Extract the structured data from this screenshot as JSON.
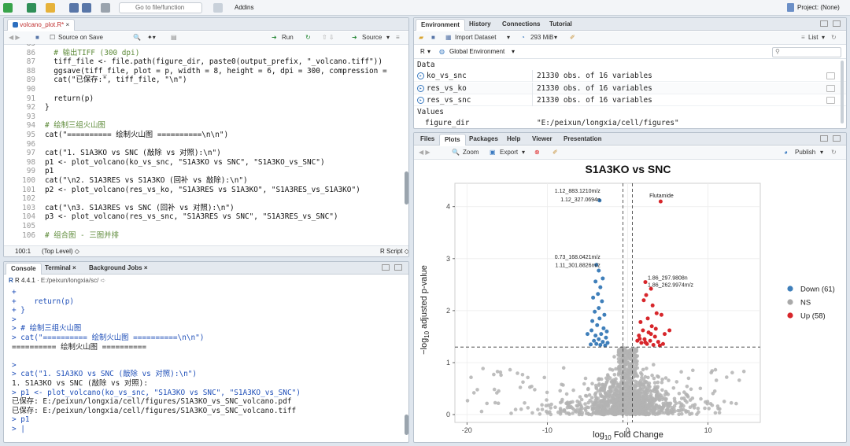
{
  "topbar": {
    "goto_placeholder": "Go to file/function",
    "addins_label": "Addins",
    "project_label": "Project: (None)"
  },
  "editor": {
    "tab_label": "volcano_plot.R*",
    "source_on_save": "Source on Save",
    "run_label": "Run",
    "source_label": "Source",
    "lines": [
      {
        "num": "85",
        "text": ""
      },
      {
        "num": "86",
        "text": "  # 输出TIFF (300 dpi)",
        "cls": "cm"
      },
      {
        "num": "87",
        "text": "  tiff_file <- file.path(figure_dir, paste0(output_prefix, \"_volcano.tiff\"))"
      },
      {
        "num": "88",
        "text": "  ggsave(tiff_file, plot = p, width = 8, height = 6, dpi = 300, compression ="
      },
      {
        "num": "89",
        "text": "  cat(\"已保存:\", tiff_file, \"\\n\")"
      },
      {
        "num": "90",
        "text": ""
      },
      {
        "num": "91",
        "text": "  return(p)"
      },
      {
        "num": "92",
        "text": "}"
      },
      {
        "num": "93",
        "text": ""
      },
      {
        "num": "94",
        "text": "# 绘制三组火山图",
        "cls": "cm"
      },
      {
        "num": "95",
        "text": "cat(\"========== 绘制火山图 ==========\\n\\n\")"
      },
      {
        "num": "96",
        "text": ""
      },
      {
        "num": "97",
        "text": "cat(\"1. S1A3KO vs SNC (敲除 vs 对照):\\n\")"
      },
      {
        "num": "98",
        "text": "p1 <- plot_volcano(ko_vs_snc, \"S1A3KO vs SNC\", \"S1A3KO_vs_SNC\")"
      },
      {
        "num": "99",
        "text": "p1"
      },
      {
        "num": "100",
        "text": "cat(\"\\n2. S1A3RES vs S1A3KO (回补 vs 敲除):\\n\")"
      },
      {
        "num": "101",
        "text": "p2 <- plot_volcano(res_vs_ko, \"S1A3RES vs S1A3KO\", \"S1A3RES_vs_S1A3KO\")"
      },
      {
        "num": "102",
        "text": ""
      },
      {
        "num": "103",
        "text": "cat(\"\\n3. S1A3RES vs SNC (回补 vs 对照):\\n\")"
      },
      {
        "num": "104",
        "text": "p3 <- plot_volcano(res_vs_snc, \"S1A3RES vs SNC\", \"S1A3RES_vs_SNC\")"
      },
      {
        "num": "105",
        "text": ""
      },
      {
        "num": "106",
        "text": "# 组合图 - 三图并排",
        "cls": "cm"
      }
    ],
    "status_pos": "100:1",
    "status_level": "(Top Level) ◇",
    "status_type": "R Script ◇"
  },
  "console": {
    "tabs": [
      "Console",
      "Terminal",
      "Background Jobs"
    ],
    "r_version": "R 4.4.1",
    "wd": "· E:/peixun/longxia/sc/",
    "lines": [
      {
        "text": "+",
        "cls": "pr"
      },
      {
        "text": "+    return(p)",
        "cls": "pr"
      },
      {
        "text": "+ }",
        "cls": "pr"
      },
      {
        "text": ">",
        "cls": "pr"
      },
      {
        "text": "> # 绘制三组火山图",
        "cls": "pr"
      },
      {
        "text": "> cat(\"========== 绘制火山图 ==========\\n\\n\")",
        "cls": "pr"
      },
      {
        "text": "========== 绘制火山图 =========="
      },
      {
        "text": ""
      },
      {
        "text": ">",
        "cls": "pr"
      },
      {
        "text": "> cat(\"1. S1A3KO vs SNC (敲除 vs 对照):\\n\")",
        "cls": "pr"
      },
      {
        "text": "1. S1A3KO vs SNC (敲除 vs 对照):"
      },
      {
        "text": "> p1 <- plot_volcano(ko_vs_snc, \"S1A3KO vs SNC\", \"S1A3KO_vs_SNC\")",
        "cls": "pr"
      },
      {
        "text": "已保存: E:/peixun/longxia/cell/figures/S1A3KO_vs_SNC_volcano.pdf"
      },
      {
        "text": "已保存: E:/peixun/longxia/cell/figures/S1A3KO_vs_SNC_volcano.tiff"
      },
      {
        "text": "> p1",
        "cls": "pr"
      },
      {
        "text": "> |",
        "cls": "pr"
      }
    ]
  },
  "environment": {
    "tabs": [
      "Environment",
      "History",
      "Connections",
      "Tutorial"
    ],
    "import_label": "Import Dataset",
    "memory": "293 MiB",
    "list_label": "List",
    "r_label": "R",
    "global_env": "Global Environment",
    "data_header": "Data",
    "values_header": "Values",
    "rows": [
      {
        "name": "ko_vs_snc",
        "value": "21330 obs. of 16 variables"
      },
      {
        "name": "res_vs_ko",
        "value": "21330 obs. of 16 variables"
      },
      {
        "name": "res_vs_snc",
        "value": "21330 obs. of 16 variables"
      }
    ],
    "partial_row": {
      "name": "figure_dir",
      "value": "\"E:/peixun/longxia/cell/figures\""
    }
  },
  "plots": {
    "tabs": [
      "Files",
      "Plots",
      "Packages",
      "Help",
      "Viewer",
      "Presentation"
    ],
    "zoom_label": "Zoom",
    "export_label": "Export",
    "publish_label": "Publish"
  },
  "chart_data": {
    "type": "scatter",
    "title": "S1A3KO vs SNC",
    "xlabel": "log10 Fold Change",
    "ylabel": "−log10 adjusted p-value",
    "xlim": [
      -21.5,
      16.5
    ],
    "ylim": [
      -0.15,
      4.45
    ],
    "xticks": [
      -20,
      -10,
      0,
      10
    ],
    "yticks": [
      0,
      1,
      2,
      3,
      4
    ],
    "hline": 1.3,
    "vlines": [
      -0.58,
      0.58
    ],
    "legend": {
      "position": "right",
      "entries": [
        {
          "label": "Down (61)",
          "color": "#3f7fba"
        },
        {
          "label": "NS",
          "color": "#a9a9a9"
        },
        {
          "label": "Up (58)",
          "color": "#d7262b"
        }
      ]
    },
    "annotations": [
      {
        "text": "1.12_883.1210m/z",
        "x": -3.4,
        "y": 4.27
      },
      {
        "text": "1.12_327.0694n",
        "x": -3.4,
        "y": 4.1
      },
      {
        "text": "Flutamide",
        "x": 2.7,
        "y": 4.18
      },
      {
        "text": "0.73_168.0421m/z",
        "x": -3.4,
        "y": 3.0
      },
      {
        "text": "1.11_301.8826m/z",
        "x": -3.4,
        "y": 2.84
      },
      {
        "text": "1.86_297.9808n",
        "x": 2.5,
        "y": 2.6
      },
      {
        "text": "1.86_262.9974m/z",
        "x": 2.5,
        "y": 2.46
      }
    ],
    "up_points": [
      [
        4.1,
        4.1
      ],
      [
        2.2,
        2.55
      ],
      [
        2.9,
        2.42
      ],
      [
        2.3,
        2.3
      ],
      [
        2.0,
        2.2
      ],
      [
        3.1,
        2.1
      ],
      [
        3.6,
        1.95
      ],
      [
        4.2,
        1.92
      ],
      [
        2.5,
        1.85
      ],
      [
        1.6,
        1.78
      ],
      [
        3.0,
        1.7
      ],
      [
        1.9,
        1.62
      ],
      [
        2.6,
        1.58
      ],
      [
        3.4,
        1.5
      ],
      [
        4.6,
        1.55
      ],
      [
        5.2,
        1.62
      ],
      [
        1.4,
        1.52
      ],
      [
        2.1,
        1.45
      ],
      [
        2.8,
        1.42
      ],
      [
        3.8,
        1.4
      ],
      [
        1.7,
        1.38
      ],
      [
        2.4,
        1.36
      ],
      [
        3.2,
        1.34
      ],
      [
        4.0,
        1.33
      ],
      [
        1.2,
        1.42
      ],
      [
        2.9,
        1.55
      ],
      [
        3.5,
        1.65
      ],
      [
        1.5,
        1.46
      ],
      [
        2.2,
        1.39
      ],
      [
        4.4,
        1.36
      ]
    ],
    "down_points": [
      [
        -3.5,
        4.12
      ],
      [
        -3.9,
        2.88
      ],
      [
        -3.6,
        2.77
      ],
      [
        -3.1,
        2.62
      ],
      [
        -4.0,
        2.56
      ],
      [
        -3.4,
        2.45
      ],
      [
        -3.7,
        2.32
      ],
      [
        -4.3,
        2.25
      ],
      [
        -3.2,
        2.18
      ],
      [
        -3.6,
        2.05
      ],
      [
        -4.1,
        1.98
      ],
      [
        -2.9,
        1.92
      ],
      [
        -3.5,
        1.85
      ],
      [
        -4.4,
        1.8
      ],
      [
        -3.8,
        1.72
      ],
      [
        -3.0,
        1.66
      ],
      [
        -2.6,
        1.6
      ],
      [
        -3.3,
        1.55
      ],
      [
        -4.0,
        1.52
      ],
      [
        -2.7,
        1.48
      ],
      [
        -3.6,
        1.45
      ],
      [
        -4.2,
        1.42
      ],
      [
        -3.1,
        1.4
      ],
      [
        -2.5,
        1.38
      ],
      [
        -3.9,
        1.36
      ],
      [
        -3.4,
        1.34
      ],
      [
        -2.8,
        1.33
      ],
      [
        -4.6,
        1.35
      ],
      [
        -5.0,
        1.55
      ],
      [
        -4.5,
        1.62
      ]
    ]
  }
}
